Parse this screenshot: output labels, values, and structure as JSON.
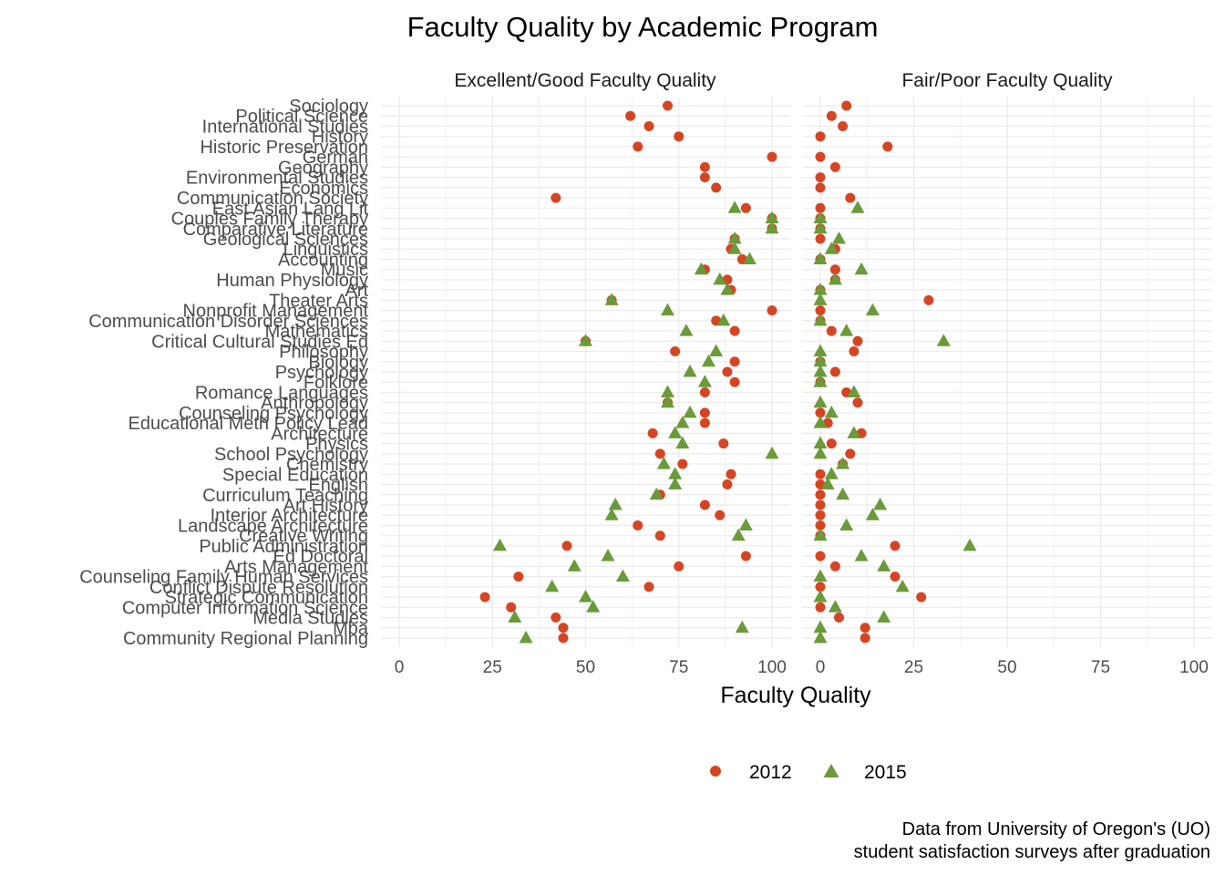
{
  "chart_data": {
    "type": "scatter",
    "title": "Faculty Quality by Academic Program",
    "xlabel": "Faculty Quality",
    "ylabel": "",
    "xlim": [
      0,
      100
    ],
    "xticks": [
      "0",
      "25",
      "50",
      "75",
      "100"
    ],
    "grid": true,
    "legend_position": "bottom",
    "caption": [
      "Data from University of Oregon's (UO)",
      "student satisfaction surveys after graduation"
    ],
    "panels": [
      "Excellent/Good Faculty Quality",
      "Fair/Poor Faculty Quality"
    ],
    "categories": [
      "Sociology",
      "Political Science",
      "International Studies",
      "History",
      "Historic Preservation",
      "German",
      "Geography",
      "Environmental Studies",
      "Economics",
      "Communication Society",
      "East Asian Lang Lit",
      "Couples Family Therapy",
      "Comparative Literature",
      "Geological Sciences",
      "Linguistics",
      "Accounting",
      "Music",
      "Human Physiology",
      "Art",
      "Theater Arts",
      "Nonprofit Management",
      "Communication Disorder Sciences",
      "Mathematics",
      "Critical Cultural Studies Ed",
      "Philosophy",
      "Biology",
      "Psychology",
      "Folklore",
      "Romance Languages",
      "Anthropology",
      "Counseling Psychology",
      "Educational Meth Policy Lead",
      "Architecture",
      "Physics",
      "School Psychology",
      "Chemistry",
      "Special Education",
      "English",
      "Curriculum Teaching",
      "Art History",
      "Interior Architecture",
      "Landscape Architecture",
      "Creative Writing",
      "Public Administration",
      "Ed Doctoral",
      "Arts Management",
      "Counseling Family Human Services",
      "Conflict Dispute Resolution",
      "Strategic Communication",
      "Computer Information Science",
      "Media Studies",
      "Mba",
      "Community Regional Planning"
    ],
    "series": [
      {
        "name": "2012",
        "color": "#d64523",
        "marker": "circle",
        "excellent_good": [
          72,
          62,
          67,
          75,
          64,
          100,
          82,
          82,
          85,
          42,
          93,
          100,
          100,
          90,
          89,
          92,
          82,
          88,
          89,
          57,
          100,
          85,
          90,
          50,
          74,
          90,
          88,
          90,
          82,
          72,
          82,
          82,
          68,
          87,
          70,
          76,
          89,
          88,
          70,
          82,
          86,
          64,
          70,
          45,
          93,
          75,
          32,
          67,
          23,
          30,
          42,
          44,
          44
        ],
        "fair_poor": [
          7,
          3,
          6,
          0,
          18,
          0,
          4,
          0,
          0,
          8,
          0,
          0,
          0,
          0,
          4,
          0,
          4,
          4,
          0,
          29,
          0,
          0,
          3,
          10,
          9,
          0,
          4,
          0,
          7,
          10,
          0,
          2,
          11,
          3,
          8,
          6,
          0,
          0,
          0,
          0,
          0,
          0,
          0,
          20,
          0,
          4,
          20,
          0,
          27,
          0,
          5,
          12,
          12
        ]
      },
      {
        "name": "2015",
        "color": "#6a9a3a",
        "marker": "triangle",
        "excellent_good": [
          null,
          null,
          null,
          null,
          null,
          null,
          null,
          null,
          null,
          null,
          90,
          100,
          100,
          90,
          90,
          94,
          81,
          86,
          88,
          57,
          72,
          87,
          77,
          50,
          85,
          83,
          78,
          82,
          72,
          72,
          78,
          76,
          74,
          76,
          100,
          71,
          74,
          74,
          69,
          58,
          57,
          93,
          91,
          27,
          56,
          47,
          60,
          41,
          50,
          52,
          31,
          92,
          34
        ],
        "fair_poor": [
          null,
          null,
          null,
          null,
          null,
          null,
          null,
          null,
          null,
          null,
          10,
          0,
          0,
          5,
          3,
          0,
          11,
          4,
          0,
          0,
          14,
          0,
          7,
          33,
          0,
          0,
          0,
          0,
          9,
          0,
          3,
          0,
          9,
          0,
          0,
          6,
          3,
          2,
          6,
          16,
          14,
          7,
          0,
          40,
          11,
          17,
          0,
          22,
          0,
          4,
          17,
          0,
          0
        ]
      }
    ]
  }
}
